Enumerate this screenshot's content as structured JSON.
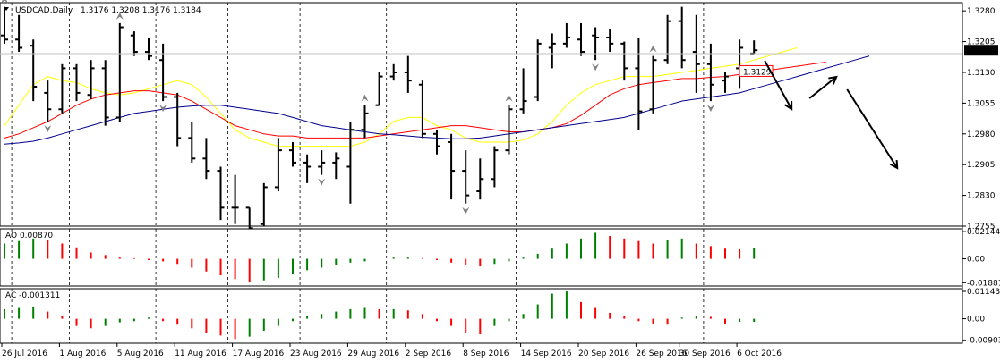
{
  "header": {
    "symbol": "USDCAD,Daily",
    "ohlc": "1.3176 1.3208 1.3176 1.3184"
  },
  "price_axis": {
    "ticks": [
      "1.3280",
      "1.3205",
      "1.3130",
      "1.3055",
      "1.2980",
      "1.2905",
      "1.2830",
      "1.2755"
    ],
    "current_price": "1.3184",
    "line_price": "1.3129"
  },
  "ao_panel": {
    "title": "AO 0.00870",
    "ticks": [
      "0.02144",
      "0.00",
      "-0.01881"
    ]
  },
  "ac_panel": {
    "title": "AC -0.001311",
    "ticks": [
      "0.01143",
      "0.00",
      "-0.00903"
    ]
  },
  "time_axis": {
    "labels": [
      "26 Jul 2016",
      "1 Aug 2016",
      "5 Aug 2016",
      "11 Aug 2016",
      "17 Aug 2016",
      "23 Aug 2016",
      "29 Aug 2016",
      "2 Sep 2016",
      "8 Sep 2016",
      "14 Sep 2016",
      "20 Sep 2016",
      "26 Sep 2016",
      "30 Sep 2016",
      "6 Oct 2016"
    ]
  },
  "colors": {
    "bar": "#000000",
    "ma_fast": "#ffff00",
    "ma_mid": "#ff0000",
    "ma_slow": "#00008b",
    "ao_up": "#008000",
    "ao_down": "#ff0000",
    "trend_line": "#0000cd",
    "fractal": "#808080"
  },
  "chart_data": {
    "type": "ohlc",
    "series_name": "USDCAD,Daily",
    "x": [
      "2016-07-26",
      "2016-07-27",
      "2016-07-28",
      "2016-07-29",
      "2016-08-01",
      "2016-08-02",
      "2016-08-03",
      "2016-08-04",
      "2016-08-05",
      "2016-08-08",
      "2016-08-09",
      "2016-08-10",
      "2016-08-11",
      "2016-08-12",
      "2016-08-15",
      "2016-08-16",
      "2016-08-17",
      "2016-08-18",
      "2016-08-19",
      "2016-08-22",
      "2016-08-23",
      "2016-08-24",
      "2016-08-25",
      "2016-08-26",
      "2016-08-29",
      "2016-08-30",
      "2016-08-31",
      "2016-09-01",
      "2016-09-02",
      "2016-09-05",
      "2016-09-06",
      "2016-09-07",
      "2016-09-08",
      "2016-09-09",
      "2016-09-12",
      "2016-09-13",
      "2016-09-14",
      "2016-09-15",
      "2016-09-16",
      "2016-09-19",
      "2016-09-20",
      "2016-09-21",
      "2016-09-22",
      "2016-09-23",
      "2016-09-26",
      "2016-09-27",
      "2016-09-28",
      "2016-09-29",
      "2016-09-30",
      "2016-10-03",
      "2016-10-04",
      "2016-10-05",
      "2016-10-06"
    ],
    "ohlc": [
      [
        1.322,
        1.329,
        1.32,
        1.321
      ],
      [
        1.321,
        1.327,
        1.318,
        1.319
      ],
      [
        1.3195,
        1.321,
        1.306,
        1.3095
      ],
      [
        1.308,
        1.311,
        1.301,
        1.304
      ],
      [
        1.304,
        1.315,
        1.303,
        1.314
      ],
      [
        1.314,
        1.315,
        1.306,
        1.308
      ],
      [
        1.3075,
        1.316,
        1.3065,
        1.314
      ],
      [
        1.314,
        1.316,
        1.3,
        1.302
      ],
      [
        1.302,
        1.325,
        1.301,
        1.324
      ],
      [
        1.322,
        1.323,
        1.317,
        1.318
      ],
      [
        1.318,
        1.3215,
        1.316,
        1.317
      ],
      [
        1.316,
        1.32,
        1.306,
        1.307
      ],
      [
        1.307,
        1.308,
        1.295,
        1.297
      ],
      [
        1.297,
        1.301,
        1.291,
        1.292
      ],
      [
        1.292,
        1.297,
        1.287,
        1.289
      ],
      [
        1.289,
        1.29,
        1.277,
        1.28
      ],
      [
        1.28,
        1.288,
        1.276,
        1.28
      ],
      [
        1.28,
        1.28,
        1.274,
        1.275
      ],
      [
        1.276,
        1.286,
        1.2755,
        1.285
      ],
      [
        1.285,
        1.297,
        1.284,
        1.294
      ],
      [
        1.294,
        1.296,
        1.29,
        1.291
      ],
      [
        1.291,
        1.293,
        1.286,
        1.29
      ],
      [
        1.29,
        1.294,
        1.288,
        1.291
      ],
      [
        1.291,
        1.2935,
        1.287,
        1.292
      ],
      [
        1.29,
        1.301,
        1.281,
        1.299
      ],
      [
        1.299,
        1.305,
        1.297,
        1.303
      ],
      [
        1.305,
        1.313,
        1.305,
        1.312
      ],
      [
        1.312,
        1.315,
        1.311,
        1.313
      ],
      [
        1.313,
        1.317,
        1.308,
        1.311
      ],
      [
        1.31,
        1.311,
        1.297,
        1.298
      ],
      [
        1.298,
        1.299,
        1.293,
        1.295
      ],
      [
        1.296,
        1.298,
        1.282,
        1.289
      ],
      [
        1.289,
        1.294,
        1.281,
        1.283
      ],
      [
        1.284,
        1.292,
        1.282,
        1.287
      ],
      [
        1.287,
        1.295,
        1.285,
        1.294
      ],
      [
        1.294,
        1.305,
        1.293,
        1.304
      ],
      [
        1.304,
        1.314,
        1.303,
        1.306
      ],
      [
        1.307,
        1.321,
        1.306,
        1.32
      ],
      [
        1.319,
        1.3225,
        1.314,
        1.32
      ],
      [
        1.32,
        1.325,
        1.319,
        1.3215
      ],
      [
        1.321,
        1.325,
        1.317,
        1.318
      ],
      [
        1.322,
        1.324,
        1.316,
        1.3215
      ],
      [
        1.3215,
        1.3235,
        1.318,
        1.32
      ],
      [
        1.32,
        1.3205,
        1.311,
        1.314
      ],
      [
        1.314,
        1.3215,
        1.299,
        1.3035
      ],
      [
        1.304,
        1.317,
        1.303,
        1.316
      ],
      [
        1.316,
        1.327,
        1.315,
        1.3255
      ],
      [
        1.3255,
        1.329,
        1.314,
        1.316
      ],
      [
        1.318,
        1.327,
        1.308,
        1.315
      ],
      [
        1.315,
        1.32,
        1.306,
        1.31
      ],
      [
        1.311,
        1.313,
        1.308,
        1.312
      ],
      [
        1.314,
        1.321,
        1.309,
        1.319
      ],
      [
        1.3176,
        1.3208,
        1.3176,
        1.3184
      ]
    ],
    "ma_fast": [
      1.3,
      1.305,
      1.31,
      1.312,
      1.311,
      1.3105,
      1.309,
      1.308,
      1.3075,
      1.308,
      1.309,
      1.31,
      1.311,
      1.31,
      1.307,
      1.303,
      1.299,
      1.297,
      1.296,
      1.295,
      1.295,
      1.295,
      1.295,
      1.295,
      1.295,
      1.296,
      1.298,
      1.301,
      1.302,
      1.302,
      1.3,
      1.299,
      1.297,
      1.296,
      1.296,
      1.296,
      1.2965,
      1.298,
      1.301,
      1.305,
      1.308,
      1.31,
      1.311,
      1.312,
      1.312,
      1.312,
      1.3125,
      1.313,
      1.3135,
      1.314,
      1.3145,
      1.315,
      1.316
    ],
    "ma_mid": [
      1.297,
      1.298,
      1.2995,
      1.301,
      1.303,
      1.305,
      1.3065,
      1.3075,
      1.308,
      1.3085,
      1.3085,
      1.308,
      1.3075,
      1.306,
      1.304,
      1.302,
      1.3,
      1.299,
      1.298,
      1.2975,
      1.2975,
      1.297,
      1.297,
      1.297,
      1.297,
      1.297,
      1.2975,
      1.298,
      1.2985,
      1.299,
      1.2995,
      1.3,
      1.3,
      1.2995,
      1.299,
      1.2985,
      1.2985,
      1.299,
      1.2995,
      1.3005,
      1.3025,
      1.305,
      1.3075,
      1.309,
      1.31,
      1.3105,
      1.311,
      1.3115,
      1.3115,
      1.3118,
      1.312,
      1.3125,
      1.313
    ],
    "ma_slow": [
      1.2955,
      1.2958,
      1.2962,
      1.297,
      1.298,
      1.299,
      1.3,
      1.301,
      1.302,
      1.303,
      1.3035,
      1.304,
      1.3045,
      1.3048,
      1.305,
      1.305,
      1.3045,
      1.304,
      1.3035,
      1.303,
      1.302,
      1.301,
      1.3,
      1.2995,
      1.299,
      1.2985,
      1.298,
      1.2978,
      1.2975,
      1.2972,
      1.297,
      1.2968,
      1.2968,
      1.297,
      1.2975,
      1.298,
      1.2985,
      1.299,
      1.2995,
      1.3,
      1.3005,
      1.301,
      1.3015,
      1.302,
      1.303,
      1.304,
      1.305,
      1.306,
      1.3065,
      1.307,
      1.3075,
      1.308,
      1.309
    ],
    "ao": [
      0.012,
      0.014,
      0.016,
      0.015,
      0.012,
      0.009,
      0.005,
      0.003,
      0.001,
      0.0005,
      -0.001,
      -0.002,
      -0.004,
      -0.007,
      -0.01,
      -0.013,
      -0.016,
      -0.018,
      -0.017,
      -0.015,
      -0.012,
      -0.009,
      -0.007,
      -0.005,
      -0.003,
      -0.002,
      0.0,
      0.001,
      0.001,
      0.0005,
      -0.001,
      -0.003,
      -0.005,
      -0.006,
      -0.004,
      -0.002,
      0.001,
      0.004,
      0.008,
      0.012,
      0.016,
      0.0205,
      0.018,
      0.016,
      0.014,
      0.012,
      0.015,
      0.016,
      0.012,
      0.01,
      0.008,
      0.0075,
      0.0087
    ],
    "ac": [
      0.004,
      0.0045,
      0.005,
      0.003,
      0.001,
      -0.003,
      -0.004,
      -0.003,
      -0.0015,
      -0.001,
      0.0005,
      -0.001,
      -0.0025,
      -0.004,
      -0.006,
      -0.007,
      -0.0085,
      -0.0075,
      -0.005,
      -0.003,
      -0.001,
      0.001,
      0.002,
      0.003,
      0.004,
      0.0045,
      0.004,
      0.004,
      0.0035,
      0.002,
      -0.001,
      -0.003,
      -0.006,
      -0.0065,
      -0.003,
      -0.001,
      0.002,
      0.006,
      0.0105,
      0.0114,
      0.007,
      0.0045,
      0.0025,
      0.001,
      -0.001,
      -0.002,
      -0.0025,
      0.0005,
      0.001,
      0.0008,
      -0.002,
      -0.0013,
      -0.0013
    ],
    "fractals_up": [
      0,
      8,
      25,
      35,
      45
    ],
    "fractals_down": [
      3,
      11,
      17,
      22,
      32,
      41,
      49
    ],
    "price_range": [
      1.2755,
      1.33
    ],
    "ao_range": [
      -0.02,
      0.0222
    ],
    "ac_range": [
      -0.0095,
      0.0118
    ],
    "forecast_arrows": "down, up, down"
  }
}
